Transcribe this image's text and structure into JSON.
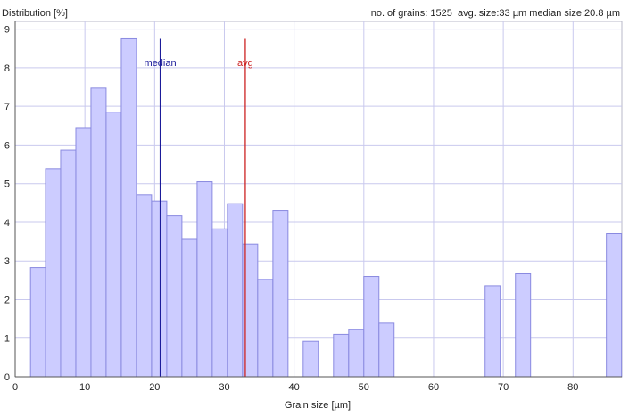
{
  "chart_data": {
    "type": "bar",
    "title": "Distribution [%]",
    "stats": {
      "grains_label": "no. of grains: 1525",
      "avg_label": "avg. size:33 µm",
      "median_label": "median size:20.8 µm"
    },
    "xlabel": "Grain size [µm]",
    "ylabel": "Distribution [%]",
    "xlim": [
      0,
      87
    ],
    "ylim": [
      0,
      9.2
    ],
    "x_ticks": [
      0,
      10,
      20,
      30,
      40,
      50,
      60,
      70,
      80
    ],
    "y_ticks": [
      0,
      1,
      2,
      3,
      4,
      5,
      6,
      7,
      8,
      9
    ],
    "grid": true,
    "bin_width": 2.17,
    "bins": [
      {
        "x": 2.2,
        "value": 2.83
      },
      {
        "x": 4.35,
        "value": 5.39
      },
      {
        "x": 6.52,
        "value": 5.87
      },
      {
        "x": 8.7,
        "value": 6.45
      },
      {
        "x": 10.87,
        "value": 7.47
      },
      {
        "x": 13.04,
        "value": 6.85
      },
      {
        "x": 15.22,
        "value": 8.75
      },
      {
        "x": 17.39,
        "value": 4.72
      },
      {
        "x": 19.57,
        "value": 4.55
      },
      {
        "x": 21.74,
        "value": 4.17
      },
      {
        "x": 23.91,
        "value": 3.56
      },
      {
        "x": 26.09,
        "value": 5.05
      },
      {
        "x": 28.26,
        "value": 3.83
      },
      {
        "x": 30.43,
        "value": 4.48
      },
      {
        "x": 32.61,
        "value": 3.44
      },
      {
        "x": 34.78,
        "value": 2.52
      },
      {
        "x": 36.96,
        "value": 4.31
      },
      {
        "x": 41.3,
        "value": 0.92
      },
      {
        "x": 45.65,
        "value": 1.1
      },
      {
        "x": 47.83,
        "value": 1.22
      },
      {
        "x": 50.0,
        "value": 2.6
      },
      {
        "x": 52.17,
        "value": 1.39
      },
      {
        "x": 67.39,
        "value": 2.36
      },
      {
        "x": 71.74,
        "value": 2.67
      },
      {
        "x": 84.78,
        "value": 3.71
      }
    ],
    "markers": [
      {
        "name": "median",
        "label": "median",
        "x": 20.8,
        "color": "#1b1b9a"
      },
      {
        "name": "avg",
        "label": "avg",
        "x": 33.0,
        "color": "#cc2222"
      }
    ],
    "bar_fill": "#ccccff",
    "bar_stroke": "#8a8ae0"
  }
}
